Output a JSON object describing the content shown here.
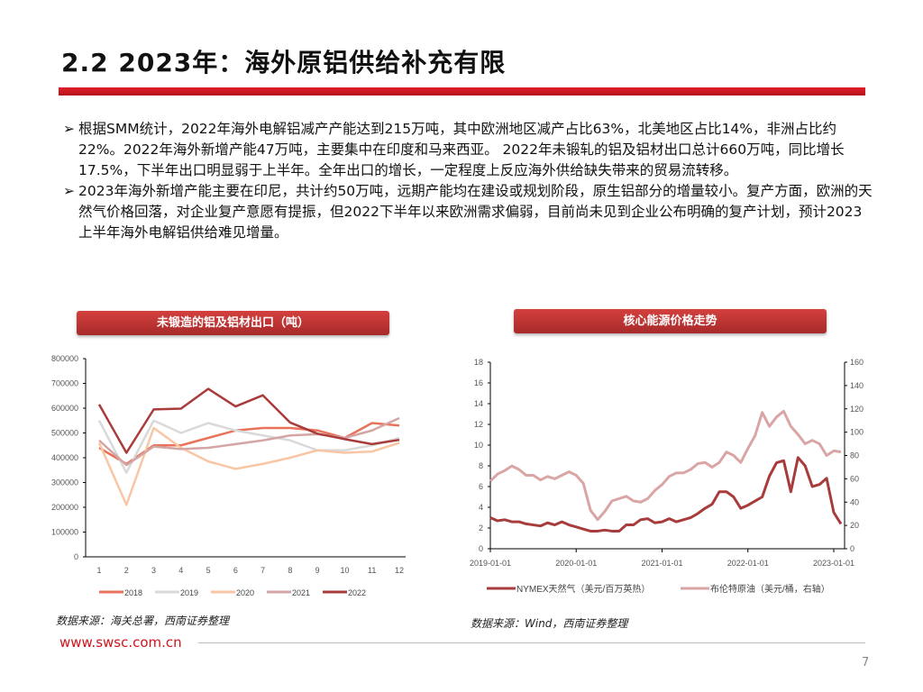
{
  "header": {
    "title": "2.2 2023年：海外原铝供给补充有限"
  },
  "bullets": [
    "根据SMM统计，2022年海外电解铝减产产能达到215万吨，其中欧洲地区减产占比63%，北美地区占比14%，非洲占比约22%。2022年海外新增产能47万吨，主要集中在印度和马来西亚。 2022年未锻轧的铝及铝材出口总计660万吨，同比增长17.5%，下半年出口明显弱于上半年。全年出口的增长，一定程度上反应海外供给缺失带来的贸易流转移。",
    "2023年海外新增产能主要在印尼，共计约50万吨，远期产能均在建设或规划阶段，原生铝部分的增量较小。复产方面，欧洲的天然气价格回落，对企业复产意愿有提振，但2022下半年以来欧洲需求偏弱，目前尚未见到企业公布明确的复产计划，预计2023上半年海外电解铝供给难见增量。"
  ],
  "bullet_glyph": "➢",
  "left_panel": {
    "heading": "未锻造的铝及铝材出口（吨）",
    "source": "数据来源：海关总署，西南证券整理"
  },
  "right_panel": {
    "heading": "核心能源价格走势",
    "source": "数据来源：Wind，西南证券整理"
  },
  "footer": {
    "url": "www.swsc.com.cn",
    "page": "7"
  },
  "chart_data": [
    {
      "type": "line",
      "categories": [
        "1",
        "2",
        "3",
        "4",
        "5",
        "6",
        "7",
        "8",
        "9",
        "10",
        "11",
        "12"
      ],
      "ylim": [
        0,
        800000
      ],
      "yticks": [
        0,
        100000,
        200000,
        300000,
        400000,
        500000,
        600000,
        700000,
        800000
      ],
      "legend": "bottom",
      "series": [
        {
          "name": "2018",
          "color": "#e8735a",
          "values": [
            440000,
            375000,
            450000,
            450000,
            480000,
            510000,
            520000,
            520000,
            510000,
            480000,
            540000,
            530000
          ]
        },
        {
          "name": "2019",
          "color": "#d9d9d9",
          "values": [
            550000,
            340000,
            550000,
            500000,
            540000,
            510000,
            490000,
            470000,
            430000,
            430000,
            450000,
            480000
          ]
        },
        {
          "name": "2020",
          "color": "#f8c6a4",
          "values": [
            460000,
            210000,
            520000,
            440000,
            385000,
            355000,
            375000,
            400000,
            430000,
            420000,
            425000,
            460000
          ]
        },
        {
          "name": "2021",
          "color": "#d4a5a5",
          "values": [
            470000,
            370000,
            445000,
            435000,
            440000,
            455000,
            470000,
            490000,
            495000,
            480000,
            510000,
            560000
          ]
        },
        {
          "name": "2022",
          "color": "#a93b3b",
          "values": [
            615000,
            420000,
            595000,
            598000,
            678000,
            607000,
            652000,
            542000,
            497000,
            475000,
            455000,
            472000
          ]
        }
      ]
    },
    {
      "type": "line",
      "xticks": [
        "2019-01-01",
        "2020-01-01",
        "2021-01-01",
        "2022-01-01",
        "2023-01-01"
      ],
      "x": [
        "2019-01",
        "2019-02",
        "2019-03",
        "2019-04",
        "2019-05",
        "2019-06",
        "2019-07",
        "2019-08",
        "2019-09",
        "2019-10",
        "2019-11",
        "2019-12",
        "2020-01",
        "2020-02",
        "2020-03",
        "2020-04",
        "2020-05",
        "2020-06",
        "2020-07",
        "2020-08",
        "2020-09",
        "2020-10",
        "2020-11",
        "2020-12",
        "2021-01",
        "2021-02",
        "2021-03",
        "2021-04",
        "2021-05",
        "2021-06",
        "2021-07",
        "2021-08",
        "2021-09",
        "2021-10",
        "2021-11",
        "2021-12",
        "2022-01",
        "2022-02",
        "2022-03",
        "2022-04",
        "2022-05",
        "2022-06",
        "2022-07",
        "2022-08",
        "2022-09",
        "2022-10",
        "2022-11",
        "2022-12",
        "2023-01",
        "2023-02"
      ],
      "ylim_left": [
        0,
        18
      ],
      "yticks_left": [
        0,
        2,
        4,
        6,
        8,
        10,
        12,
        14,
        16,
        18
      ],
      "ylim_right": [
        0,
        160
      ],
      "yticks_right": [
        0,
        20,
        40,
        60,
        80,
        100,
        120,
        140,
        160
      ],
      "legend": "bottom",
      "series": [
        {
          "name": "NYMEX天然气（美元/百万英热）",
          "axis": "left",
          "color": "#a83c3c",
          "values": [
            3.0,
            2.7,
            2.8,
            2.6,
            2.6,
            2.4,
            2.3,
            2.2,
            2.5,
            2.3,
            2.6,
            2.3,
            2.1,
            1.9,
            1.7,
            1.7,
            1.8,
            1.7,
            1.7,
            2.3,
            2.3,
            2.8,
            2.9,
            2.5,
            2.6,
            2.9,
            2.6,
            2.8,
            3.0,
            3.4,
            3.9,
            4.3,
            5.5,
            5.5,
            5.0,
            3.9,
            4.2,
            4.6,
            5.0,
            7.0,
            8.3,
            8.5,
            5.5,
            8.8,
            8.0,
            6.0,
            6.2,
            6.8,
            3.5,
            2.4
          ]
        },
        {
          "name": "布伦特原油（美元/桶，右轴）",
          "axis": "right",
          "color": "#d9a5a5",
          "values": [
            58,
            64,
            67,
            71,
            68,
            63,
            63,
            59,
            62,
            60,
            63,
            66,
            63,
            56,
            33,
            25,
            32,
            41,
            43,
            45,
            41,
            40,
            43,
            50,
            55,
            62,
            65,
            65,
            68,
            73,
            74,
            70,
            74,
            83,
            80,
            74,
            86,
            97,
            117,
            105,
            113,
            118,
            105,
            98,
            90,
            93,
            90,
            80,
            84,
            83
          ]
        }
      ]
    }
  ]
}
